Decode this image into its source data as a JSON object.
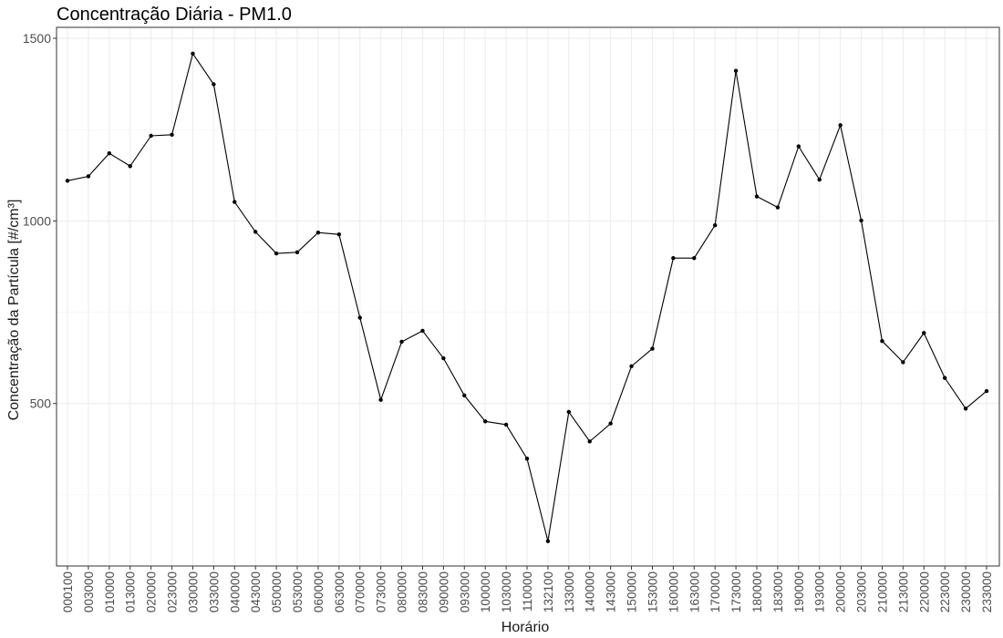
{
  "chart_data": {
    "type": "line",
    "title": "Concentração Diária - PM1.0",
    "xlabel": "Horário",
    "ylabel": "Concentração da Partícula [#/cm³]",
    "ylim": [
      55,
      1530
    ],
    "yticks": [
      500,
      1000,
      1500
    ],
    "grid": true,
    "series_color": "#000000",
    "x": [
      "000100",
      "003000",
      "010000",
      "013000",
      "020000",
      "023000",
      "030000",
      "033000",
      "040000",
      "043000",
      "050000",
      "053000",
      "060000",
      "063000",
      "070000",
      "073000",
      "080000",
      "083000",
      "090000",
      "093000",
      "100000",
      "103000",
      "110000",
      "132100",
      "133000",
      "140000",
      "143000",
      "150000",
      "153000",
      "160000",
      "163000",
      "170000",
      "173000",
      "180000",
      "183000",
      "190000",
      "193000",
      "200000",
      "203000",
      "210000",
      "213000",
      "220000",
      "223000",
      "230000",
      "233000"
    ],
    "values": [
      1110,
      1122,
      1185,
      1150,
      1233,
      1236,
      1458,
      1374,
      1052,
      970,
      911,
      914,
      968,
      963,
      735,
      510,
      669,
      699,
      624,
      522,
      451,
      442,
      349,
      123,
      477,
      396,
      445,
      602,
      650,
      898,
      898,
      988,
      1411,
      1067,
      1037,
      1204,
      1113,
      1262,
      1001,
      671,
      613,
      693,
      570,
      486,
      534
    ]
  }
}
